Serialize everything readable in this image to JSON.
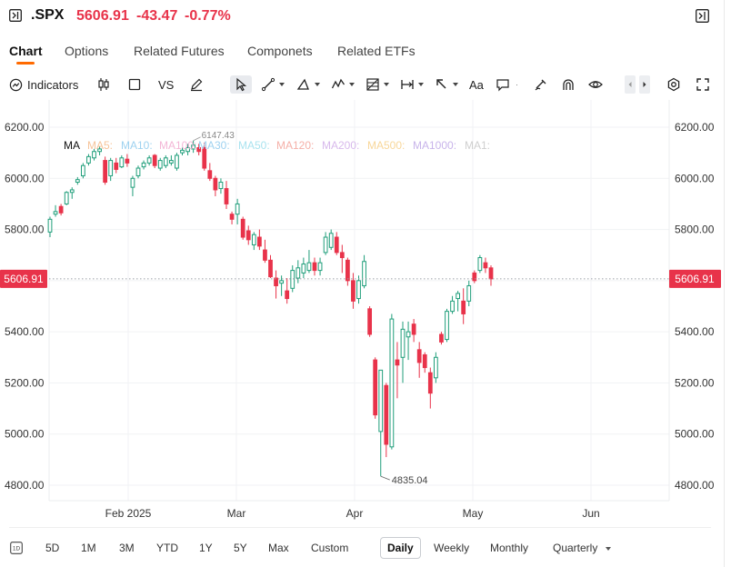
{
  "header": {
    "ticker": ".SPX",
    "price": "5606.91",
    "change": "-43.47",
    "change_pct": "-0.77%",
    "down_color": "#e8334a"
  },
  "tabs": [
    {
      "label": "Chart",
      "active": true
    },
    {
      "label": "Options"
    },
    {
      "label": "Related Futures"
    },
    {
      "label": "Componets"
    },
    {
      "label": "Related ETFs"
    }
  ],
  "toolbar": {
    "indicators_label": "Indicators",
    "vs_label": "VS",
    "text_tool_label": "Aa",
    "icons": [
      "indicators-icon",
      "candlestick-icon",
      "square-icon",
      "pen-icon",
      "cursor-icon",
      "line-icon",
      "triangle-icon",
      "wave-icon",
      "grid-icon",
      "measure-icon",
      "arrow-icon",
      "text-icon",
      "comment-icon",
      "brush-icon",
      "magnet-icon",
      "eye-icon",
      "settings-icon",
      "fullscreen-icon"
    ]
  },
  "bottom_bar": {
    "ranges": [
      "5D",
      "1M",
      "3M",
      "YTD",
      "1Y",
      "5Y",
      "Max",
      "Custom"
    ],
    "intervals": [
      "Daily",
      "Weekly",
      "Monthly",
      "Quarterly"
    ],
    "selected_interval": "Daily"
  },
  "chart_data": {
    "type": "candlestick",
    "ylim": [
      4750,
      6290
    ],
    "y_ticks": [
      "6200.00",
      "6000.00",
      "5800.00",
      "5600.00",
      "5400.00",
      "5200.00",
      "5000.00",
      "4800.00"
    ],
    "y_tick_values": [
      6200,
      6000,
      5800,
      5600,
      5400,
      5200,
      5000,
      4800
    ],
    "x_labels": [
      "Feb 2025",
      "Mar",
      "Apr",
      "May",
      "Jun"
    ],
    "current_price_label": "5606.91",
    "current_price": 5606.91,
    "annotations": [
      {
        "text": "6147.43",
        "value": 6147.43
      },
      {
        "text": "4835.04",
        "value": 4835.04
      }
    ],
    "legend": {
      "title": "MA",
      "items": [
        {
          "label": "MA5:",
          "color": "#f6c49a"
        },
        {
          "label": "MA10:",
          "color": "#9ed2f0"
        },
        {
          "label": "MA100:",
          "color": "#f3b6d6"
        },
        {
          "label": "MA30:",
          "color": "#9ed2f0"
        },
        {
          "label": "MA50:",
          "color": "#a9e3ef"
        },
        {
          "label": "MA120:",
          "color": "#f5b0a8"
        },
        {
          "label": "MA200:",
          "color": "#d8b9ec"
        },
        {
          "label": "MA500:",
          "color": "#f8d79a"
        },
        {
          "label": "MA1000:",
          "color": "#c8b4ea"
        },
        {
          "label": "MA1:",
          "color": "#cfcfcf"
        }
      ]
    },
    "up_color": "#1f9e7a",
    "down_color": "#e8334a",
    "candles": [
      {
        "o": 5790,
        "h": 5850,
        "l": 5770,
        "c": 5840
      },
      {
        "o": 5860,
        "h": 5895,
        "l": 5850,
        "c": 5870
      },
      {
        "o": 5890,
        "h": 5900,
        "l": 5855,
        "c": 5865
      },
      {
        "o": 5900,
        "h": 5950,
        "l": 5895,
        "c": 5945
      },
      {
        "o": 5945,
        "h": 5965,
        "l": 5920,
        "c": 5955
      },
      {
        "o": 5985,
        "h": 6005,
        "l": 5975,
        "c": 5995
      },
      {
        "o": 6010,
        "h": 6060,
        "l": 6000,
        "c": 6050
      },
      {
        "o": 6060,
        "h": 6095,
        "l": 6050,
        "c": 6085
      },
      {
        "o": 6080,
        "h": 6115,
        "l": 6070,
        "c": 6105
      },
      {
        "o": 6105,
        "h": 6125,
        "l": 6090,
        "c": 6115
      },
      {
        "o": 6070,
        "h": 6085,
        "l": 5975,
        "c": 5985
      },
      {
        "o": 6010,
        "h": 6080,
        "l": 5990,
        "c": 6070
      },
      {
        "o": 6060,
        "h": 6080,
        "l": 6020,
        "c": 6035
      },
      {
        "o": 6045,
        "h": 6090,
        "l": 6040,
        "c": 6080
      },
      {
        "o": 6075,
        "h": 6095,
        "l": 6045,
        "c": 6060
      },
      {
        "o": 5965,
        "h": 6010,
        "l": 5930,
        "c": 6000
      },
      {
        "o": 6010,
        "h": 6050,
        "l": 6000,
        "c": 6040
      },
      {
        "o": 6045,
        "h": 6070,
        "l": 6035,
        "c": 6060
      },
      {
        "o": 6060,
        "h": 6090,
        "l": 6050,
        "c": 6080
      },
      {
        "o": 6090,
        "h": 6095,
        "l": 6040,
        "c": 6050
      },
      {
        "o": 6040,
        "h": 6080,
        "l": 6030,
        "c": 6070
      },
      {
        "o": 6050,
        "h": 6090,
        "l": 6040,
        "c": 6080
      },
      {
        "o": 6060,
        "h": 6090,
        "l": 6050,
        "c": 6070
      },
      {
        "o": 6040,
        "h": 6100,
        "l": 6030,
        "c": 6090
      },
      {
        "o": 6100,
        "h": 6120,
        "l": 6090,
        "c": 6110
      },
      {
        "o": 6105,
        "h": 6135,
        "l": 6090,
        "c": 6120
      },
      {
        "o": 6115,
        "h": 6147.43,
        "l": 6100,
        "c": 6130
      },
      {
        "o": 6120,
        "h": 6135,
        "l": 6090,
        "c": 6105
      },
      {
        "o": 6120,
        "h": 6140,
        "l": 6030,
        "c": 6040
      },
      {
        "o": 6030,
        "h": 6060,
        "l": 5990,
        "c": 6000
      },
      {
        "o": 6000,
        "h": 6010,
        "l": 5930,
        "c": 5955
      },
      {
        "o": 5960,
        "h": 6000,
        "l": 5940,
        "c": 5985
      },
      {
        "o": 5960,
        "h": 5990,
        "l": 5880,
        "c": 5900
      },
      {
        "o": 5860,
        "h": 5870,
        "l": 5820,
        "c": 5840
      },
      {
        "o": 5860,
        "h": 5920,
        "l": 5820,
        "c": 5900
      },
      {
        "o": 5840,
        "h": 5850,
        "l": 5760,
        "c": 5770
      },
      {
        "o": 5795,
        "h": 5815,
        "l": 5740,
        "c": 5760
      },
      {
        "o": 5740,
        "h": 5790,
        "l": 5720,
        "c": 5780
      },
      {
        "o": 5770,
        "h": 5800,
        "l": 5720,
        "c": 5735
      },
      {
        "o": 5720,
        "h": 5760,
        "l": 5670,
        "c": 5680
      },
      {
        "o": 5680,
        "h": 5700,
        "l": 5610,
        "c": 5615
      },
      {
        "o": 5610,
        "h": 5640,
        "l": 5530,
        "c": 5580
      },
      {
        "o": 5590,
        "h": 5620,
        "l": 5540,
        "c": 5600
      },
      {
        "o": 5560,
        "h": 5610,
        "l": 5510,
        "c": 5530
      },
      {
        "o": 5570,
        "h": 5660,
        "l": 5555,
        "c": 5640
      },
      {
        "o": 5610,
        "h": 5680,
        "l": 5590,
        "c": 5650
      },
      {
        "o": 5630,
        "h": 5690,
        "l": 5610,
        "c": 5665
      },
      {
        "o": 5640,
        "h": 5720,
        "l": 5630,
        "c": 5670
      },
      {
        "o": 5670,
        "h": 5690,
        "l": 5620,
        "c": 5640
      },
      {
        "o": 5640,
        "h": 5690,
        "l": 5620,
        "c": 5670
      },
      {
        "o": 5710,
        "h": 5790,
        "l": 5700,
        "c": 5770
      },
      {
        "o": 5730,
        "h": 5800,
        "l": 5720,
        "c": 5785
      },
      {
        "o": 5770,
        "h": 5790,
        "l": 5700,
        "c": 5710
      },
      {
        "o": 5710,
        "h": 5740,
        "l": 5630,
        "c": 5690
      },
      {
        "o": 5680,
        "h": 5690,
        "l": 5580,
        "c": 5600
      },
      {
        "o": 5600,
        "h": 5630,
        "l": 5490,
        "c": 5520
      },
      {
        "o": 5530,
        "h": 5620,
        "l": 5510,
        "c": 5600
      },
      {
        "o": 5580,
        "h": 5700,
        "l": 5570,
        "c": 5675
      },
      {
        "o": 5490,
        "h": 5500,
        "l": 5380,
        "c": 5390
      },
      {
        "o": 5290,
        "h": 5300,
        "l": 5060,
        "c": 5075
      },
      {
        "o": 5010,
        "h": 5250,
        "l": 4835.04,
        "c": 5250
      },
      {
        "o": 5190,
        "h": 5200,
        "l": 4910,
        "c": 4960
      },
      {
        "o": 4950,
        "h": 5470,
        "l": 4940,
        "c": 5450
      },
      {
        "o": 5290,
        "h": 5360,
        "l": 5140,
        "c": 5270
      },
      {
        "o": 5300,
        "h": 5440,
        "l": 5200,
        "c": 5410
      },
      {
        "o": 5380,
        "h": 5440,
        "l": 5290,
        "c": 5400
      },
      {
        "o": 5430,
        "h": 5450,
        "l": 5360,
        "c": 5390
      },
      {
        "o": 5330,
        "h": 5360,
        "l": 5220,
        "c": 5280
      },
      {
        "o": 5310,
        "h": 5320,
        "l": 5240,
        "c": 5260
      },
      {
        "o": 5240,
        "h": 5260,
        "l": 5100,
        "c": 5160
      },
      {
        "o": 5220,
        "h": 5320,
        "l": 5200,
        "c": 5300
      },
      {
        "o": 5390,
        "h": 5400,
        "l": 5350,
        "c": 5360
      },
      {
        "o": 5370,
        "h": 5490,
        "l": 5360,
        "c": 5480
      },
      {
        "o": 5480,
        "h": 5540,
        "l": 5470,
        "c": 5520
      },
      {
        "o": 5530,
        "h": 5560,
        "l": 5480,
        "c": 5550
      },
      {
        "o": 5520,
        "h": 5570,
        "l": 5430,
        "c": 5470
      },
      {
        "o": 5520,
        "h": 5600,
        "l": 5500,
        "c": 5580
      },
      {
        "o": 5630,
        "h": 5640,
        "l": 5590,
        "c": 5600
      },
      {
        "o": 5640,
        "h": 5700,
        "l": 5630,
        "c": 5690
      },
      {
        "o": 5670,
        "h": 5690,
        "l": 5630,
        "c": 5650
      },
      {
        "o": 5650,
        "h": 5660,
        "l": 5580,
        "c": 5606.91
      }
    ]
  }
}
